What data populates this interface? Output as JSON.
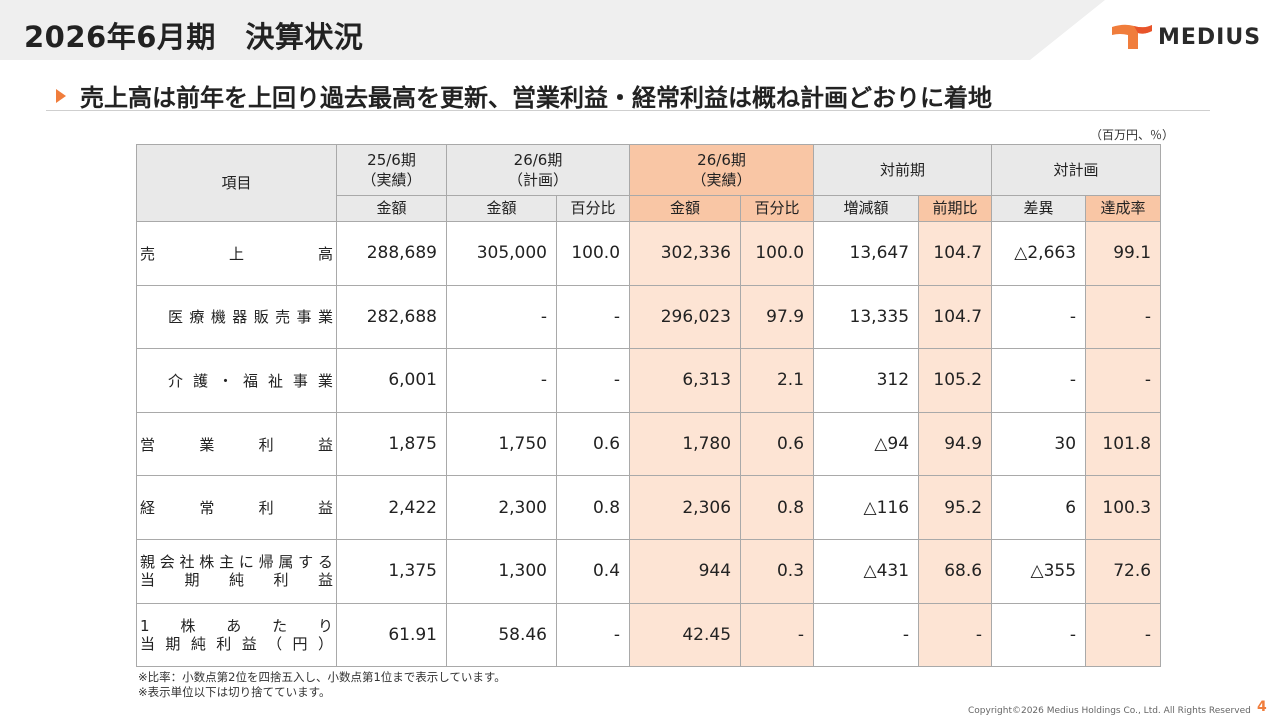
{
  "header": {
    "title": "2026年6月期　決算状況",
    "logo_text": "MEDIUS",
    "brand_color": "#f07d3c"
  },
  "subheading": "売上高は前年を上回り過去最高を更新、営業利益・経常利益は概ね計画どおりに着地",
  "unit_note": "（百万円、％）",
  "table": {
    "item_header": "項目",
    "group_headers": {
      "fy25_actual": "25/6期\n（実績）",
      "fy26_plan": "26/6期\n（計画）",
      "fy26_actual": "26/6期\n（実績）",
      "yoy": "対前期",
      "vs_plan": "対計画"
    },
    "sub_headers": {
      "fy25_amount": "金額",
      "plan_amount": "金額",
      "plan_ratio": "百分比",
      "actual_amount": "金額",
      "actual_ratio": "百分比",
      "yoy_change": "増減額",
      "yoy_ratio": "前期比",
      "plan_diff": "差異",
      "plan_achieve": "達成率"
    },
    "rows": [
      {
        "label_chars": [
          "売",
          "上",
          "高"
        ],
        "indent": false,
        "values": [
          "288,689",
          "305,000",
          "100.0",
          "302,336",
          "100.0",
          "13,647",
          "104.7",
          "△2,663",
          "99.1"
        ]
      },
      {
        "label_chars": [
          "医",
          "療",
          "機",
          "器",
          "販",
          "売",
          "事",
          "業"
        ],
        "indent": true,
        "values": [
          "282,688",
          "-",
          "-",
          "296,023",
          "97.9",
          "13,335",
          "104.7",
          "-",
          "-"
        ]
      },
      {
        "label_chars": [
          "介",
          "護",
          "・",
          "福",
          "祉",
          "事",
          "業"
        ],
        "indent": true,
        "values": [
          "6,001",
          "-",
          "-",
          "6,313",
          "2.1",
          "312",
          "105.2",
          "-",
          "-"
        ]
      },
      {
        "label_chars": [
          "営",
          "業",
          "利",
          "益"
        ],
        "indent": false,
        "values": [
          "1,875",
          "1,750",
          "0.6",
          "1,780",
          "0.6",
          "△94",
          "94.9",
          "30",
          "101.8"
        ]
      },
      {
        "label_chars": [
          "経",
          "常",
          "利",
          "益"
        ],
        "indent": false,
        "values": [
          "2,422",
          "2,300",
          "0.8",
          "2,306",
          "0.8",
          "△116",
          "95.2",
          "6",
          "100.3"
        ]
      },
      {
        "label_lines": [
          [
            "親",
            "会",
            "社",
            "株",
            "主",
            "に",
            "帰",
            "属",
            "す",
            "る"
          ],
          [
            "当",
            "期",
            "純",
            "利",
            "益"
          ]
        ],
        "indent": false,
        "values": [
          "1,375",
          "1,300",
          "0.4",
          "944",
          "0.3",
          "△431",
          "68.6",
          "△355",
          "72.6"
        ]
      },
      {
        "label_lines": [
          [
            "1",
            "株",
            "あ",
            "た",
            "り"
          ],
          [
            "当",
            "期",
            "純",
            "利",
            "益",
            "（",
            "円",
            "）"
          ]
        ],
        "indent": false,
        "values": [
          "61.91",
          "58.46",
          "-",
          "42.45",
          "-",
          "-",
          "-",
          "-",
          "-"
        ]
      }
    ]
  },
  "footnotes": [
    "※比率：小数点第2位を四捨五入し、小数点第1位まで表示しています。",
    "※表示単位以下は切り捨てています。"
  ],
  "copyright": "Copyright©2026 Medius Holdings Co., Ltd. All Rights Reserved",
  "page_number": "4",
  "colors": {
    "header_gray": "#e9e9e9",
    "highlight_header": "#f9c6a5",
    "highlight_cell": "#fde4d4"
  }
}
